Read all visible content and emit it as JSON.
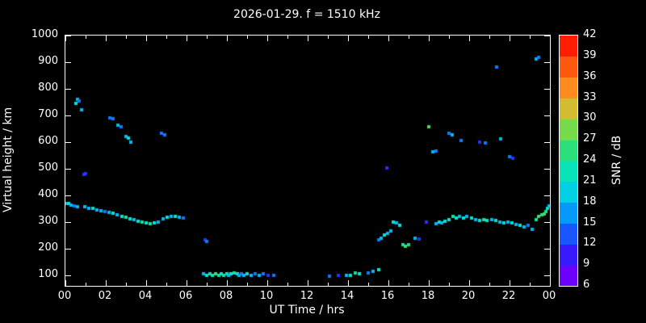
{
  "title": "2026-01-29. f = 1510 kHz",
  "axes": {
    "xlabel": "UT Time / hrs",
    "ylabel": "Virtual height / km",
    "x_range": [
      0,
      24
    ],
    "y_range": [
      60,
      1000
    ],
    "x_ticks": [
      {
        "value": 0,
        "label": "00"
      },
      {
        "value": 2,
        "label": "02"
      },
      {
        "value": 4,
        "label": "04"
      },
      {
        "value": 6,
        "label": "06"
      },
      {
        "value": 8,
        "label": "08"
      },
      {
        "value": 10,
        "label": "10"
      },
      {
        "value": 12,
        "label": "12"
      },
      {
        "value": 14,
        "label": "14"
      },
      {
        "value": 16,
        "label": "16"
      },
      {
        "value": 18,
        "label": "18"
      },
      {
        "value": 20,
        "label": "20"
      },
      {
        "value": 22,
        "label": "22"
      },
      {
        "value": 24,
        "label": "00"
      }
    ],
    "x_minor_ticks": [
      1,
      3,
      5,
      7,
      9,
      11,
      13,
      15,
      17,
      19,
      21,
      23
    ],
    "y_ticks": [
      100,
      200,
      300,
      400,
      500,
      600,
      700,
      800,
      900,
      1000
    ]
  },
  "colorbar": {
    "label": "SNR / dB",
    "range": [
      6,
      42
    ],
    "ticks": [
      6,
      9,
      12,
      15,
      18,
      21,
      24,
      27,
      30,
      33,
      36,
      39,
      42
    ],
    "stops": [
      {
        "v": 6,
        "c": "#8a00ff"
      },
      {
        "v": 9,
        "c": "#4b00ff"
      },
      {
        "v": 12,
        "c": "#2633ff"
      },
      {
        "v": 15,
        "c": "#0a7bff"
      },
      {
        "v": 18,
        "c": "#00b8f5"
      },
      {
        "v": 21,
        "c": "#00e5d2"
      },
      {
        "v": 24,
        "c": "#0fe39b"
      },
      {
        "v": 27,
        "c": "#45db5d"
      },
      {
        "v": 30,
        "c": "#a8d838"
      },
      {
        "v": 33,
        "c": "#ffa028"
      },
      {
        "v": 36,
        "c": "#ff7518"
      },
      {
        "v": 39,
        "c": "#ff3a05"
      },
      {
        "v": 42,
        "c": "#ff0000"
      }
    ]
  },
  "chart_data": {
    "type": "scatter",
    "title": "2026-01-29. f = 1510 kHz",
    "xlabel": "UT Time / hrs",
    "ylabel": "Virtual height / km",
    "color_label": "SNR / dB",
    "xlim": [
      0,
      24
    ],
    "ylim": [
      60,
      1000
    ],
    "clim": [
      6,
      42
    ],
    "point_format": [
      "time_hours_UT",
      "virtual_height_km",
      "snr_dB"
    ],
    "points": [
      [
        0.05,
        370,
        18
      ],
      [
        0.15,
        368,
        21
      ],
      [
        0.3,
        362,
        18
      ],
      [
        0.45,
        360,
        15
      ],
      [
        0.6,
        358,
        18
      ],
      [
        0.5,
        745,
        21
      ],
      [
        0.6,
        760,
        18
      ],
      [
        0.7,
        755,
        15
      ],
      [
        0.78,
        722,
        18
      ],
      [
        0.9,
        478,
        12
      ],
      [
        1.0,
        483,
        12
      ],
      [
        0.95,
        358,
        18
      ],
      [
        1.15,
        352,
        18
      ],
      [
        1.35,
        350,
        21
      ],
      [
        1.55,
        345,
        18
      ],
      [
        1.75,
        342,
        18
      ],
      [
        1.95,
        338,
        15
      ],
      [
        2.15,
        335,
        18
      ],
      [
        2.35,
        332,
        21
      ],
      [
        2.55,
        328,
        18
      ],
      [
        2.2,
        692,
        15
      ],
      [
        2.35,
        688,
        15
      ],
      [
        2.6,
        662,
        18
      ],
      [
        2.75,
        656,
        15
      ],
      [
        3.0,
        622,
        18
      ],
      [
        3.1,
        616,
        21
      ],
      [
        3.25,
        600,
        18
      ],
      [
        2.8,
        322,
        21
      ],
      [
        3.0,
        318,
        24
      ],
      [
        3.2,
        312,
        21
      ],
      [
        3.4,
        308,
        18
      ],
      [
        3.6,
        302,
        21
      ],
      [
        3.8,
        300,
        24
      ],
      [
        4.0,
        296,
        21
      ],
      [
        4.2,
        292,
        24
      ],
      [
        4.4,
        296,
        21
      ],
      [
        4.6,
        300,
        18
      ],
      [
        4.75,
        632,
        15
      ],
      [
        4.9,
        626,
        15
      ],
      [
        4.85,
        312,
        18
      ],
      [
        5.05,
        318,
        21
      ],
      [
        5.25,
        322,
        18
      ],
      [
        5.45,
        322,
        21
      ],
      [
        5.65,
        318,
        18
      ],
      [
        5.85,
        315,
        15
      ],
      [
        6.9,
        232,
        12
      ],
      [
        7.0,
        226,
        15
      ],
      [
        6.85,
        106,
        18
      ],
      [
        7.0,
        100,
        21
      ],
      [
        7.15,
        104,
        24
      ],
      [
        7.3,
        100,
        21
      ],
      [
        7.45,
        106,
        27
      ],
      [
        7.6,
        100,
        24
      ],
      [
        7.7,
        104,
        21
      ],
      [
        7.85,
        100,
        24
      ],
      [
        8.0,
        106,
        21
      ],
      [
        8.1,
        100,
        18
      ],
      [
        8.2,
        104,
        21
      ],
      [
        8.35,
        110,
        24
      ],
      [
        8.5,
        104,
        21
      ],
      [
        8.6,
        100,
        18
      ],
      [
        8.7,
        106,
        15
      ],
      [
        8.85,
        100,
        18
      ],
      [
        9.0,
        104,
        21
      ],
      [
        9.2,
        100,
        18
      ],
      [
        9.4,
        104,
        15
      ],
      [
        9.6,
        100,
        18
      ],
      [
        9.8,
        104,
        15
      ],
      [
        10.05,
        100,
        12
      ],
      [
        10.3,
        100,
        15
      ],
      [
        13.1,
        96,
        15
      ],
      [
        13.5,
        100,
        12
      ],
      [
        13.9,
        100,
        18
      ],
      [
        14.1,
        100,
        21
      ],
      [
        14.35,
        110,
        24
      ],
      [
        14.55,
        104,
        21
      ],
      [
        15.0,
        110,
        15
      ],
      [
        15.25,
        114,
        18
      ],
      [
        15.5,
        120,
        21
      ],
      [
        15.5,
        232,
        15
      ],
      [
        15.65,
        240,
        18
      ],
      [
        15.8,
        250,
        21
      ],
      [
        15.95,
        256,
        18
      ],
      [
        15.9,
        502,
        12
      ],
      [
        16.1,
        266,
        18
      ],
      [
        16.25,
        300,
        21
      ],
      [
        16.4,
        296,
        18
      ],
      [
        16.55,
        286,
        21
      ],
      [
        16.7,
        216,
        24
      ],
      [
        16.85,
        210,
        27
      ],
      [
        17.0,
        216,
        24
      ],
      [
        17.3,
        240,
        18
      ],
      [
        17.5,
        236,
        12
      ],
      [
        17.9,
        300,
        12
      ],
      [
        18.0,
        656,
        27
      ],
      [
        18.2,
        562,
        18
      ],
      [
        18.35,
        566,
        15
      ],
      [
        18.35,
        292,
        18
      ],
      [
        18.5,
        300,
        21
      ],
      [
        18.65,
        296,
        18
      ],
      [
        18.8,
        302,
        21
      ],
      [
        19.0,
        632,
        15
      ],
      [
        19.15,
        626,
        18
      ],
      [
        19.0,
        310,
        21
      ],
      [
        19.2,
        320,
        24
      ],
      [
        19.35,
        316,
        21
      ],
      [
        19.5,
        320,
        18
      ],
      [
        19.6,
        606,
        15
      ],
      [
        19.7,
        316,
        21
      ],
      [
        19.9,
        322,
        18
      ],
      [
        20.1,
        316,
        21
      ],
      [
        20.3,
        310,
        18
      ],
      [
        20.5,
        600,
        12
      ],
      [
        20.8,
        596,
        15
      ],
      [
        20.5,
        306,
        21
      ],
      [
        20.7,
        310,
        24
      ],
      [
        20.9,
        306,
        21
      ],
      [
        21.1,
        310,
        18
      ],
      [
        21.35,
        882,
        15
      ],
      [
        21.3,
        306,
        21
      ],
      [
        21.55,
        612,
        18
      ],
      [
        21.5,
        300,
        18
      ],
      [
        21.7,
        296,
        21
      ],
      [
        21.9,
        300,
        18
      ],
      [
        22.0,
        546,
        15
      ],
      [
        22.15,
        540,
        12
      ],
      [
        22.1,
        296,
        21
      ],
      [
        22.3,
        290,
        18
      ],
      [
        22.5,
        286,
        21
      ],
      [
        22.7,
        280,
        18
      ],
      [
        22.9,
        286,
        15
      ],
      [
        23.1,
        272,
        18
      ],
      [
        23.3,
        912,
        18
      ],
      [
        23.45,
        918,
        15
      ],
      [
        23.3,
        310,
        24
      ],
      [
        23.45,
        320,
        27
      ],
      [
        23.6,
        326,
        24
      ],
      [
        23.7,
        330,
        27
      ],
      [
        23.8,
        340,
        24
      ],
      [
        23.9,
        350,
        21
      ],
      [
        23.97,
        360,
        18
      ]
    ]
  }
}
